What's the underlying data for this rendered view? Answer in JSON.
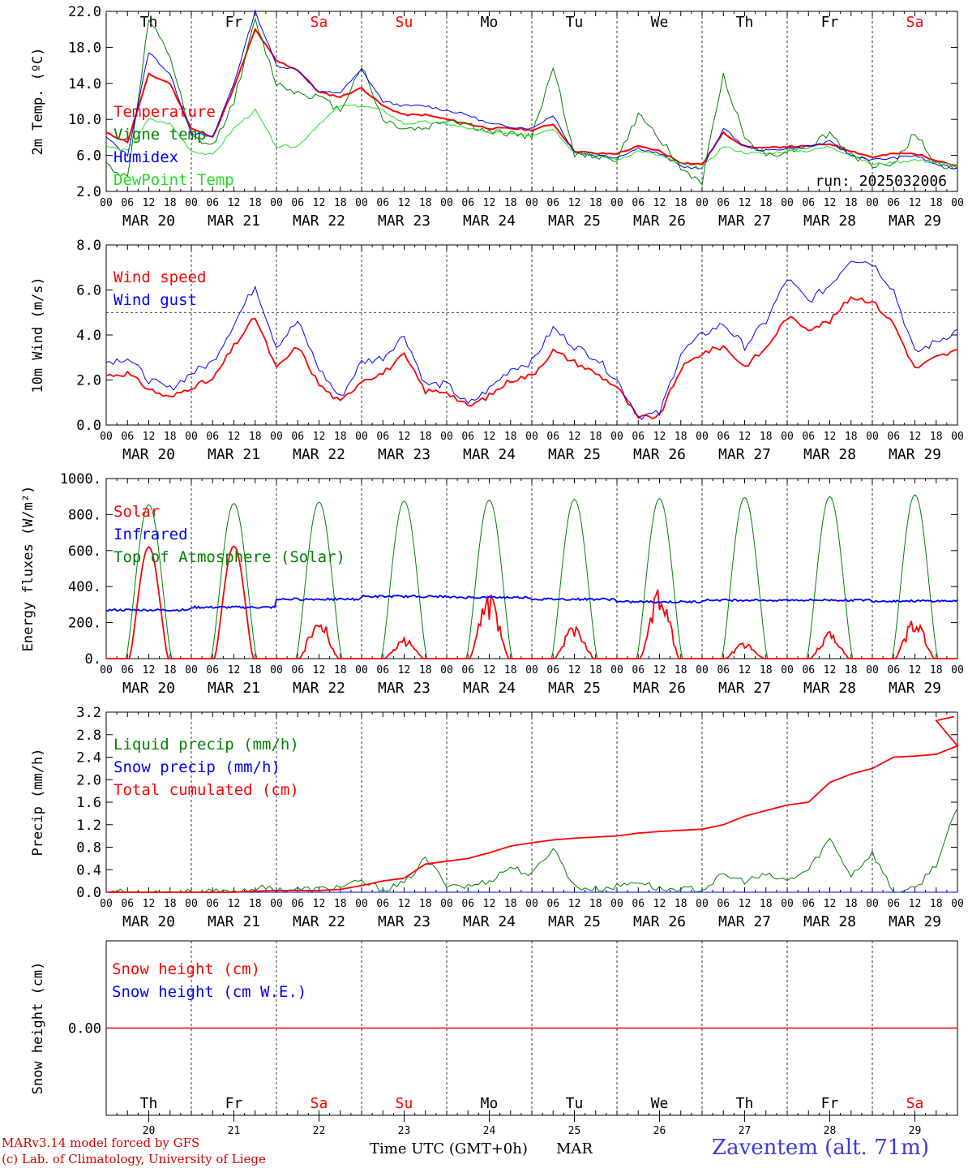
{
  "footer": {
    "model": "MARv3.14 model forced by GFS",
    "credit": "(c) Lab. of Climatology, University of Liege",
    "xtitle": "Time UTC (GMT+0h)",
    "month": "MAR",
    "station": "Zaventem (alt. 71m)"
  },
  "colors": {
    "red": "#ff0000",
    "blue": "#0000ff",
    "green": "#008000",
    "lightgreen": "#22dd22",
    "weekend": "#ff0000"
  },
  "days": {
    "names": [
      "Th",
      "Fr",
      "Sa",
      "Su",
      "Mo",
      "Tu",
      "We",
      "Th",
      "Fr",
      "Sa"
    ],
    "weekend": [
      false,
      false,
      true,
      true,
      false,
      false,
      false,
      false,
      false,
      true
    ],
    "dates": [
      "MAR 20",
      "MAR 21",
      "MAR 22",
      "MAR 23",
      "MAR 24",
      "MAR 25",
      "MAR 26",
      "MAR 27",
      "MAR 28",
      "MAR 29"
    ],
    "numbers": [
      "20",
      "21",
      "22",
      "23",
      "24",
      "25",
      "26",
      "27",
      "28",
      "29"
    ],
    "hours": [
      "00",
      "06",
      "12",
      "18"
    ],
    "end_hour": "00"
  },
  "chart_data": [
    {
      "type": "line",
      "ylabel": "2m Temp. (ºC)",
      "ylim": [
        2.0,
        22.0
      ],
      "yticks": [
        "2.0",
        "6.0",
        "10.0",
        "14.0",
        "18.0",
        "22.0"
      ],
      "run_label": "run: 2025032006",
      "x_hours": [
        0,
        6,
        12,
        18,
        24,
        30,
        36,
        42,
        48,
        54,
        60,
        66,
        72,
        78,
        84,
        90,
        96,
        102,
        108,
        114,
        120,
        126,
        132,
        138,
        144,
        150,
        156,
        162,
        168,
        174,
        180,
        186,
        192,
        198,
        204,
        210,
        216,
        222,
        228,
        234,
        240
      ],
      "series": [
        {
          "name": "Temperature",
          "color": "#ff0000",
          "values": [
            8.5,
            7.5,
            15,
            14,
            9,
            8,
            13.5,
            20,
            16.5,
            15.5,
            13,
            12.5,
            13.5,
            11.5,
            10.5,
            10.5,
            10,
            9.5,
            9,
            9,
            8.8,
            9.5,
            6.5,
            6.2,
            6.2,
            7,
            6.5,
            5.2,
            5.0,
            8.5,
            7,
            6.8,
            7,
            7,
            7.3,
            6.5,
            5.8,
            6.2,
            6.2,
            5.5,
            4.8
          ]
        },
        {
          "name": "Vigne temp",
          "color": "#008000",
          "values": [
            5,
            3.5,
            21,
            17,
            8,
            7,
            12,
            21,
            14,
            13,
            12.5,
            11,
            16,
            10,
            9,
            9,
            10,
            9.5,
            8.5,
            8.5,
            8,
            16,
            6,
            6,
            5.5,
            10.5,
            8,
            4.5,
            3,
            15,
            8,
            6,
            6.5,
            7,
            8.5,
            6,
            5,
            5,
            8.5,
            5,
            4.5
          ]
        },
        {
          "name": "Humidex",
          "color": "#0000ff",
          "values": [
            8,
            6,
            17.5,
            15,
            8.5,
            8,
            14,
            22,
            16,
            15.5,
            13,
            13,
            15.5,
            12,
            11.5,
            11.5,
            11,
            10.5,
            9.5,
            9.2,
            9,
            10.5,
            6.3,
            6,
            5.8,
            6.8,
            6.2,
            4.8,
            4.5,
            9,
            7,
            6.5,
            6.8,
            7,
            7.5,
            6,
            5.5,
            5.7,
            6,
            5,
            4.5
          ]
        },
        {
          "name": "DewPoint Temp",
          "color": "#22dd22",
          "values": [
            7,
            6.5,
            10,
            9.5,
            6.5,
            6,
            9,
            11,
            7,
            7,
            9.5,
            11.5,
            11.5,
            11,
            9.5,
            9.7,
            9.5,
            9,
            8.5,
            8.5,
            8.3,
            9,
            6.3,
            6,
            5.5,
            6.5,
            6,
            5,
            4.6,
            7,
            6.3,
            6.2,
            6.5,
            6.5,
            7,
            6,
            5,
            5.2,
            5.5,
            5.2,
            4.8
          ]
        }
      ]
    },
    {
      "type": "line",
      "ylabel": "10m Wind (m/s)",
      "ylim": [
        0.0,
        8.0
      ],
      "yticks": [
        "0.0",
        "2.0",
        "4.0",
        "6.0",
        "8.0"
      ],
      "reference_line": 5.0,
      "x_hours": [
        0,
        6,
        12,
        18,
        24,
        30,
        36,
        42,
        48,
        54,
        60,
        66,
        72,
        78,
        84,
        90,
        96,
        102,
        108,
        114,
        120,
        126,
        132,
        138,
        144,
        150,
        156,
        162,
        168,
        174,
        180,
        186,
        192,
        198,
        204,
        210,
        216,
        222,
        228,
        234,
        240
      ],
      "series": [
        {
          "name": "Wind speed",
          "color": "#ff0000",
          "values": [
            2.2,
            2.3,
            1.6,
            1.2,
            1.7,
            2.0,
            3.5,
            4.8,
            2.5,
            3.5,
            1.8,
            1.0,
            2.0,
            2.3,
            3.1,
            1.5,
            1.5,
            0.8,
            1.3,
            2.0,
            2.2,
            3.3,
            2.8,
            2.3,
            1.7,
            0.3,
            0.4,
            2.5,
            3.2,
            3.5,
            2.6,
            3.4,
            4.8,
            4.3,
            4.6,
            5.7,
            5.5,
            4.5,
            2.5,
            3.0,
            3.3
          ]
        },
        {
          "name": "Wind gust",
          "color": "#0000ff",
          "values": [
            2.8,
            3.0,
            2.0,
            1.6,
            2.3,
            2.8,
            4.5,
            6.2,
            3.5,
            4.6,
            2.5,
            1.2,
            2.8,
            3.0,
            4.0,
            1.8,
            1.8,
            0.9,
            1.6,
            2.5,
            2.8,
            4.3,
            3.5,
            3.0,
            2.0,
            0.4,
            0.5,
            3.2,
            4.0,
            4.5,
            3.5,
            4.6,
            6.5,
            5.5,
            6.2,
            7.4,
            7.2,
            6.0,
            3.2,
            3.7,
            4.2
          ]
        }
      ]
    },
    {
      "type": "line",
      "ylabel": "Energy fluxes (W/m²)",
      "ylim": [
        0,
        1000
      ],
      "yticks": [
        "0.",
        "200.",
        "400.",
        "600.",
        "800.",
        "1000."
      ],
      "series": [
        {
          "name": "Solar",
          "color": "#ff0000",
          "daily_peak": [
            620,
            625,
            235,
            115,
            360,
            200,
            390,
            90,
            150,
            230
          ]
        },
        {
          "name": "Infrared",
          "color": "#0000ff",
          "daily_mean": [
            270,
            285,
            330,
            345,
            340,
            330,
            315,
            325,
            325,
            320
          ]
        },
        {
          "name": "Top of Atmosphere (Solar)",
          "color": "#008000",
          "daily_peak": [
            855,
            862,
            870,
            875,
            880,
            885,
            890,
            895,
            900,
            910
          ]
        }
      ]
    },
    {
      "type": "line",
      "ylabel": "Precip (mm/h)",
      "ylim": [
        0.0,
        3.2
      ],
      "yticks": [
        "0.0",
        "0.4",
        "0.8",
        "1.2",
        "1.6",
        "2.0",
        "2.4",
        "2.8",
        "3.2"
      ],
      "x_hours": [
        0,
        6,
        12,
        18,
        24,
        30,
        36,
        42,
        48,
        54,
        60,
        66,
        72,
        78,
        84,
        90,
        96,
        102,
        108,
        114,
        120,
        126,
        132,
        138,
        144,
        150,
        156,
        162,
        168,
        174,
        180,
        186,
        192,
        198,
        204,
        210,
        216,
        222,
        228,
        234,
        240
      ],
      "series": [
        {
          "name": "Liquid precip (mm/h)",
          "color": "#008000",
          "values": [
            0,
            0,
            0,
            0,
            0,
            0,
            0,
            0.08,
            0.05,
            0.05,
            0.05,
            0.1,
            0.18,
            0.05,
            0.15,
            0.6,
            0.15,
            0.1,
            0.2,
            0.45,
            0.3,
            0.8,
            0.1,
            0.05,
            0.1,
            0.2,
            0.05,
            0.05,
            0.05,
            0.3,
            0.2,
            0.3,
            0.2,
            0.4,
            0.95,
            0.3,
            0.7,
            0,
            0.05,
            0.5,
            1.5
          ]
        },
        {
          "name": "Snow precip (mm/h)",
          "color": "#0000ff",
          "values": [
            0,
            0,
            0,
            0,
            0,
            0,
            0,
            0,
            0,
            0,
            0,
            0,
            0,
            0,
            0,
            0,
            0,
            0,
            0,
            0,
            0,
            0,
            0,
            0,
            0,
            0,
            0,
            0,
            0,
            0,
            0,
            0,
            0,
            0,
            0,
            0,
            0,
            0,
            0,
            0,
            0
          ]
        },
        {
          "name": "Total cumulated (cm)",
          "color": "#ff0000",
          "values": [
            0,
            0,
            0,
            0,
            0,
            0,
            0,
            0.02,
            0.03,
            0.03,
            0.03,
            0.05,
            0.12,
            0.2,
            0.25,
            0.5,
            0.55,
            0.6,
            0.7,
            0.82,
            0.88,
            0.93,
            0.96,
            0.98,
            1.0,
            1.05,
            1.08,
            1.1,
            1.12,
            1.2,
            1.35,
            1.45,
            1.55,
            1.6,
            1.95,
            2.1,
            2.2,
            2.4,
            2.42,
            2.45,
            2.6
          ]
        }
      ]
    },
    {
      "type": "line",
      "ylabel": "Snow height (cm)",
      "yticks": [
        "0.00"
      ],
      "series": [
        {
          "name": "Snow height (cm)",
          "color": "#ff0000",
          "values": [
            0,
            0
          ]
        },
        {
          "name": "Snow height (cm W.E.)",
          "color": "#0000ff",
          "values": [
            0,
            0
          ]
        }
      ]
    }
  ]
}
